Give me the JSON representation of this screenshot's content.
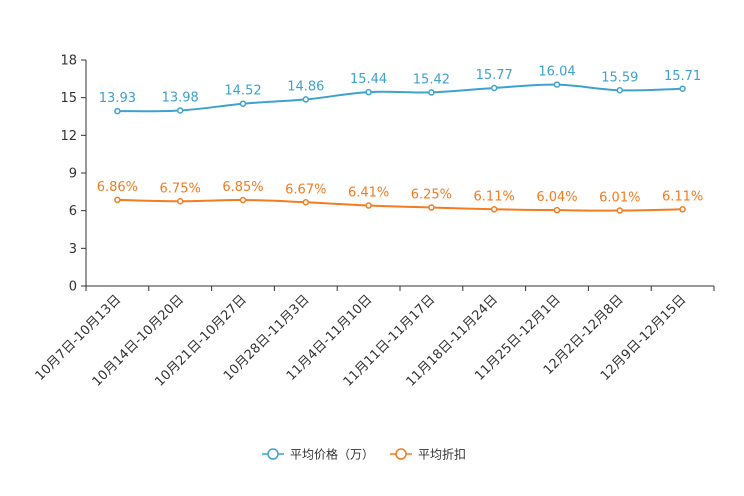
{
  "chart_data": {
    "type": "line",
    "categories": [
      "10月7日-10月13日",
      "10月14日-10月20日",
      "10月21日-10月27日",
      "10月28日-11月3日",
      "11月4日-11月10日",
      "11月11日-11月17日",
      "11月18日-11月24日",
      "11月25日-12月1日",
      "12月2日-12月8日",
      "12月9日-12月15日"
    ],
    "y_ticks": [
      "0",
      "3",
      "6",
      "9",
      "12",
      "15",
      "18"
    ],
    "ylim": [
      0,
      18
    ],
    "series": [
      {
        "name": "平均价格（万）",
        "color": "#3ea2cf",
        "values": [
          13.93,
          13.98,
          14.52,
          14.86,
          15.44,
          15.42,
          15.77,
          16.04,
          15.59,
          15.71
        ],
        "labels": [
          "13.93",
          "13.98",
          "14.52",
          "14.86",
          "15.44",
          "15.42",
          "15.77",
          "16.04",
          "15.59",
          "15.71"
        ]
      },
      {
        "name": "平均折扣",
        "color": "#f47b20",
        "values": [
          6.86,
          6.75,
          6.85,
          6.67,
          6.41,
          6.25,
          6.11,
          6.04,
          6.01,
          6.11
        ],
        "labels": [
          "6.86%",
          "6.75%",
          "6.85%",
          "6.67%",
          "6.41%",
          "6.25%",
          "6.11%",
          "6.04%",
          "6.01%",
          "6.11%"
        ]
      }
    ],
    "legend_position": "bottom-center",
    "grid": false
  }
}
